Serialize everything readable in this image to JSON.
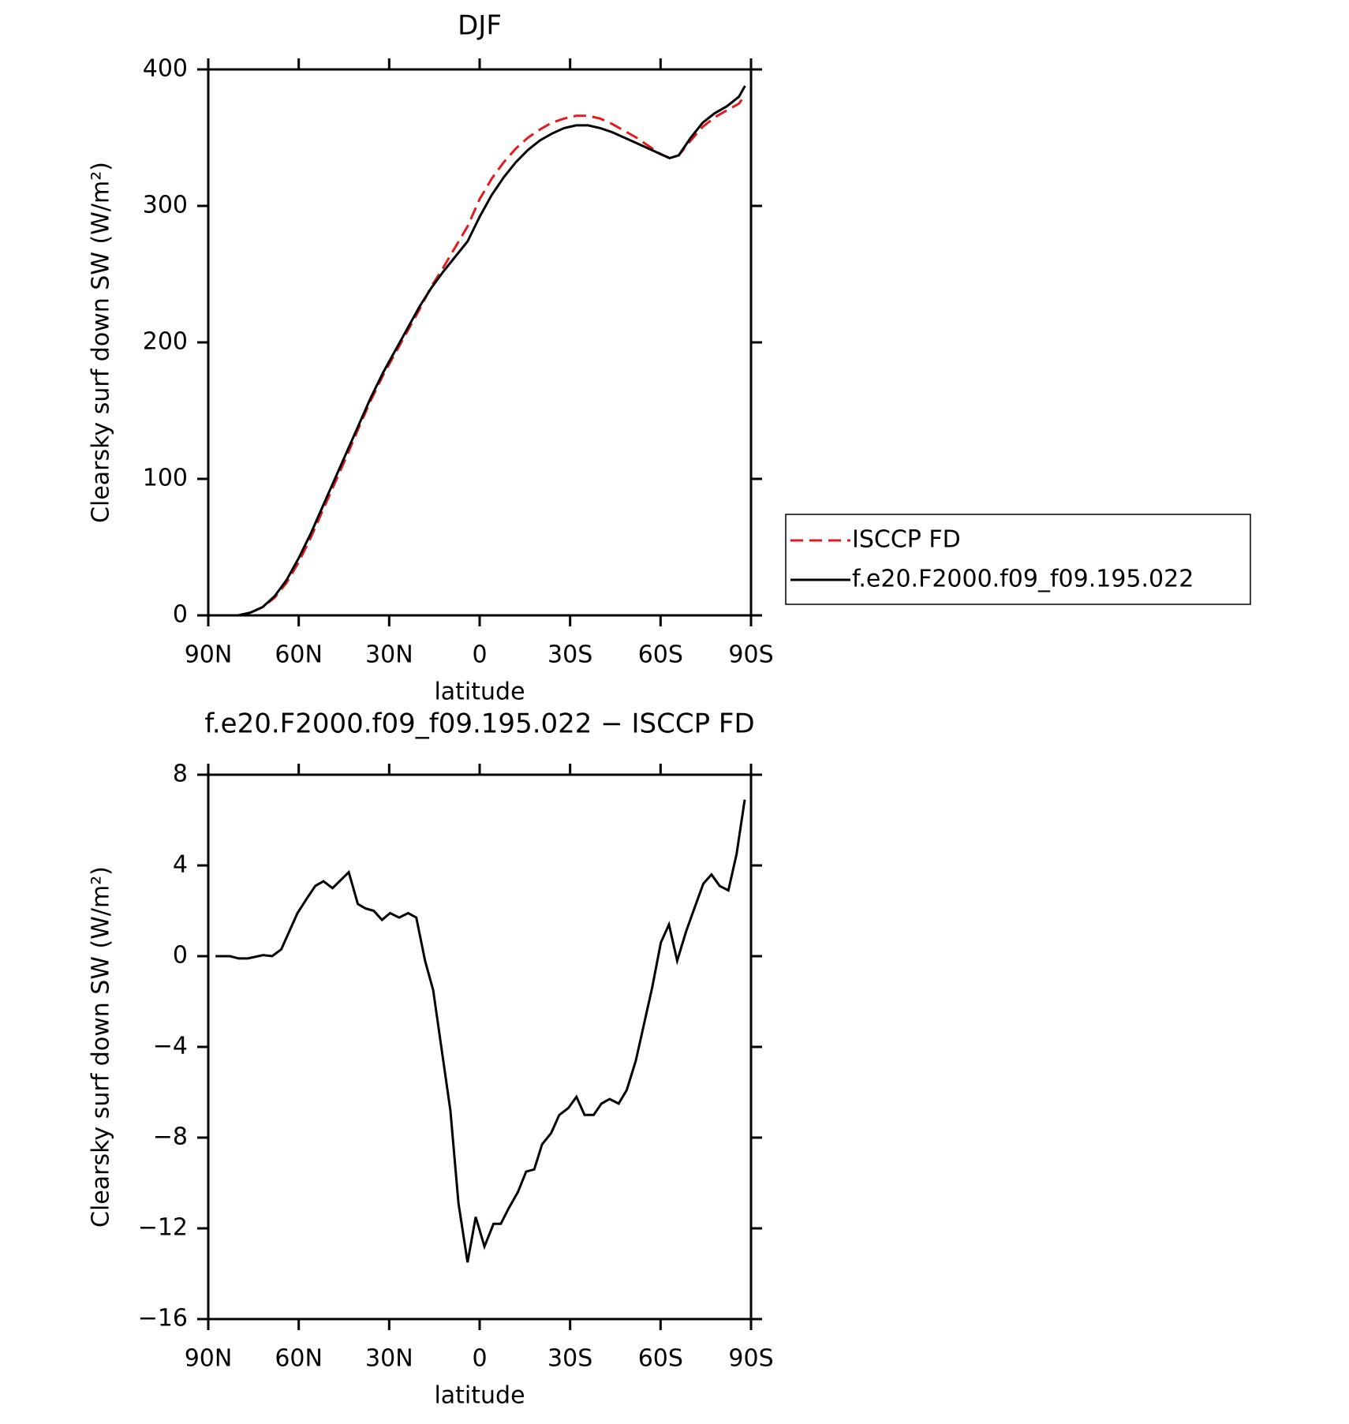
{
  "chart_data": [
    {
      "type": "line",
      "title": "DJF",
      "xlabel": "latitude",
      "ylabel": "Clearsky surf down SW (W/m²)",
      "x": [
        88,
        80,
        76,
        72,
        68,
        64,
        60,
        56,
        52,
        48,
        44,
        40,
        36,
        32,
        28,
        24,
        20,
        16,
        12,
        8,
        4,
        0,
        -4,
        -8,
        -12,
        -16,
        -20,
        -24,
        -28,
        -32,
        -36,
        -40,
        -44,
        -48,
        -52,
        -56,
        -60,
        -63,
        -66,
        -70,
        -74,
        -78,
        -82,
        -86,
        -88
      ],
      "series": [
        {
          "name": "ISCCP FD",
          "color": "#e41a1c",
          "dash": true,
          "values": [
            0,
            0,
            2,
            6,
            13,
            24,
            39,
            57,
            77,
            97,
            117,
            138,
            158,
            176,
            192,
            208,
            224,
            241,
            255,
            270,
            285,
            305,
            320,
            332,
            342,
            350,
            356,
            361,
            364,
            366,
            366,
            364,
            360,
            355,
            350,
            344,
            338,
            335,
            337,
            348,
            358,
            365,
            370,
            375,
            381
          ]
        },
        {
          "name": "f.e20.F2000.f09_f09.195.022",
          "color": "#000000",
          "dash": false,
          "values": [
            0,
            0,
            2,
            6,
            14,
            26,
            42,
            60,
            80,
            100,
            120,
            140,
            160,
            178,
            194,
            210,
            226,
            240,
            252,
            263,
            274,
            292,
            308,
            321,
            332,
            341,
            348,
            353,
            357,
            359,
            359,
            357,
            354,
            350,
            346,
            342,
            338,
            335,
            337,
            350,
            361,
            368,
            373,
            380,
            388
          ]
        }
      ],
      "xlim": [
        90,
        -90
      ],
      "xticks": [
        {
          "value": 90,
          "label": "90N"
        },
        {
          "value": 60,
          "label": "60N"
        },
        {
          "value": 30,
          "label": "30N"
        },
        0,
        {
          "value": -30,
          "label": "30S"
        },
        {
          "value": -60,
          "label": "60S"
        },
        {
          "value": -90,
          "label": "90S"
        }
      ],
      "ylim": [
        0,
        400
      ],
      "yticks": [
        0,
        100,
        200,
        300,
        400
      ],
      "legend": "right"
    },
    {
      "type": "line",
      "title": "f.e20.F2000.f09_f09.195.022 − ISCCP FD",
      "xlabel": "latitude",
      "ylabel": "Clearsky surf down SW (W/m²)",
      "x": [
        87.6,
        82.8,
        79.9,
        76.9,
        71.8,
        68.8,
        65.8,
        60.4,
        57.5,
        54.5,
        51.8,
        48.8,
        43.4,
        40.4,
        37.8,
        35.1,
        32.4,
        29.7,
        26.7,
        23.7,
        21.0,
        18.1,
        15.4,
        9.7,
        7.0,
        4.0,
        1.3,
        -1.6,
        -4.6,
        -7.0,
        -9.7,
        -12.7,
        -15.4,
        -18.1,
        -20.7,
        -23.7,
        -26.4,
        -29.4,
        -32.1,
        -34.8,
        -37.8,
        -40.4,
        -43.1,
        -46.1,
        -48.8,
        -51.8,
        -57.2,
        -60.1,
        -62.8,
        -65.5,
        -68.5,
        -71.2,
        -74.2,
        -76.9,
        -79.6,
        -82.5,
        -85.2,
        -87.9
      ],
      "series": [
        {
          "name": "f.e20.F2000.f09_f09.195.022 − ISCCP FD",
          "color": "#000000",
          "dash": false,
          "values": [
            0,
            0,
            -0.1,
            -0.1,
            0.05,
            0,
            0.3,
            1.9,
            2.5,
            3.1,
            3.3,
            3.0,
            3.7,
            2.3,
            2.1,
            2.0,
            1.6,
            1.9,
            1.7,
            1.9,
            1.7,
            -0.2,
            -1.5,
            -6.8,
            -10.9,
            -13.5,
            -11.5,
            -12.8,
            -11.8,
            -11.8,
            -11.1,
            -10.4,
            -9.5,
            -9.4,
            -8.3,
            -7.8,
            -7.0,
            -6.7,
            -6.2,
            -7.0,
            -7.0,
            -6.5,
            -6.3,
            -6.5,
            -5.9,
            -4.6,
            -1.4,
            0.6,
            1.4,
            -0.2,
            1.1,
            2.1,
            3.2,
            3.6,
            3.1,
            2.9,
            4.5,
            6.9
          ]
        }
      ],
      "xlim": [
        90,
        -90
      ],
      "xticks": [
        {
          "value": 90,
          "label": "90N"
        },
        {
          "value": 60,
          "label": "60N"
        },
        {
          "value": 30,
          "label": "30N"
        },
        0,
        {
          "value": -30,
          "label": "30S"
        },
        {
          "value": -60,
          "label": "60S"
        },
        {
          "value": -90,
          "label": "90S"
        }
      ],
      "ylim": [
        -16,
        8
      ],
      "yticks": [
        {
          "value": -16,
          "label": "−16"
        },
        {
          "value": -12,
          "label": "−12"
        },
        {
          "value": -8,
          "label": "−8"
        },
        {
          "value": -4,
          "label": "−4"
        },
        0,
        4,
        8
      ]
    }
  ]
}
